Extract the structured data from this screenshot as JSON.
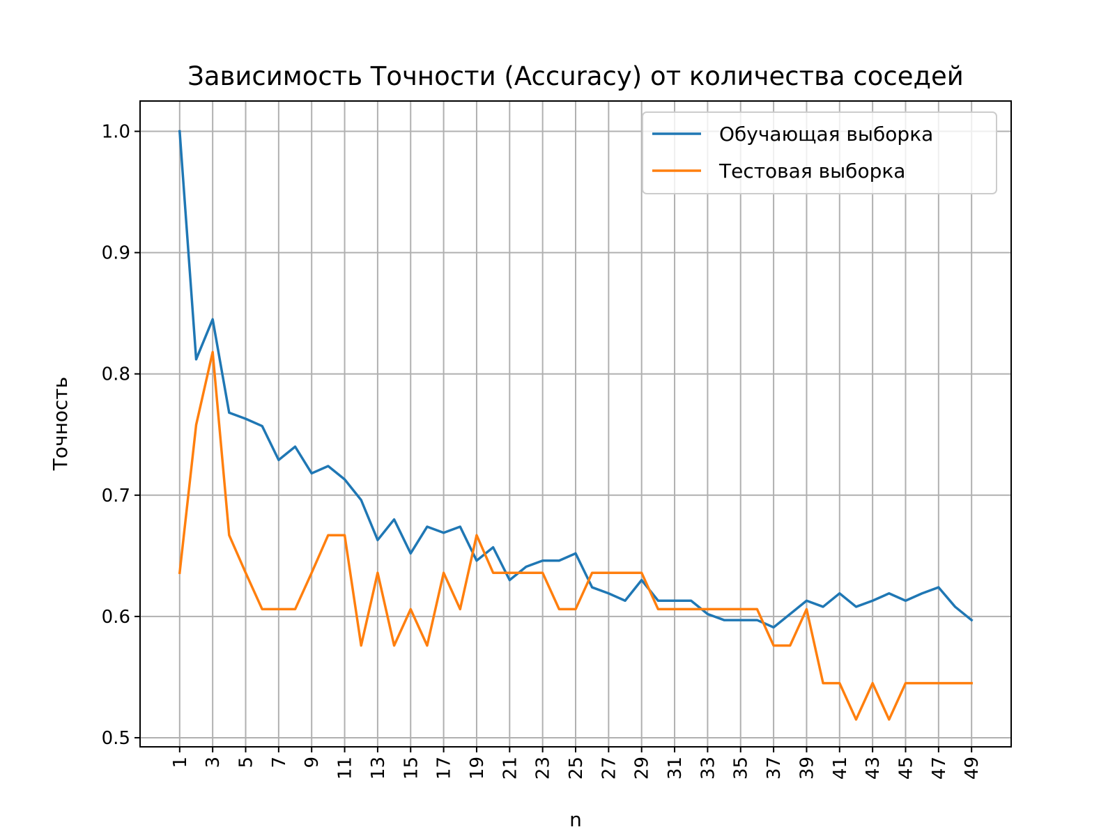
{
  "chart_data": {
    "type": "line",
    "title": "Зависимость Точности (Accuracy) от количества соседей",
    "xlabel": "n",
    "ylabel": "Точность",
    "x": [
      1,
      2,
      3,
      4,
      5,
      6,
      7,
      8,
      9,
      10,
      11,
      12,
      13,
      14,
      15,
      16,
      17,
      18,
      19,
      20,
      21,
      22,
      23,
      24,
      25,
      26,
      27,
      28,
      29,
      30,
      31,
      32,
      33,
      34,
      35,
      36,
      37,
      38,
      39,
      40,
      41,
      42,
      43,
      44,
      45,
      46,
      47,
      48,
      49
    ],
    "xticks": [
      1,
      3,
      5,
      7,
      9,
      11,
      13,
      15,
      17,
      19,
      21,
      23,
      25,
      27,
      29,
      31,
      33,
      35,
      37,
      39,
      41,
      43,
      45,
      47,
      49
    ],
    "xlim": [
      -1.4,
      51.4
    ],
    "ylim": [
      0.4925,
      1.025
    ],
    "yticks": [
      0.5,
      0.6,
      0.7,
      0.8,
      0.9,
      1.0
    ],
    "ytick_labels": [
      "0.5",
      "0.6",
      "0.7",
      "0.8",
      "0.9",
      "1.0"
    ],
    "grid": true,
    "legend_position": "top-right",
    "series": [
      {
        "name": "Обучающая выборка",
        "color": "#1f77b4",
        "values": [
          1.0,
          0.812,
          0.845,
          0.768,
          0.763,
          0.757,
          0.729,
          0.74,
          0.718,
          0.724,
          0.713,
          0.696,
          0.663,
          0.68,
          0.652,
          0.674,
          0.669,
          0.674,
          0.646,
          0.657,
          0.63,
          0.641,
          0.646,
          0.646,
          0.652,
          0.624,
          0.619,
          0.613,
          0.63,
          0.613,
          0.613,
          0.613,
          0.602,
          0.597,
          0.597,
          0.597,
          0.591,
          0.602,
          0.613,
          0.608,
          0.619,
          0.608,
          0.613,
          0.619,
          0.613,
          0.619,
          0.624,
          0.608,
          0.597
        ]
      },
      {
        "name": "Тестовая выборка",
        "color": "#ff7f0e",
        "values": [
          0.636,
          0.758,
          0.818,
          0.667,
          0.636,
          0.606,
          0.606,
          0.606,
          0.636,
          0.667,
          0.667,
          0.576,
          0.636,
          0.576,
          0.606,
          0.576,
          0.636,
          0.606,
          0.667,
          0.636,
          0.636,
          0.636,
          0.636,
          0.606,
          0.606,
          0.636,
          0.636,
          0.636,
          0.636,
          0.606,
          0.606,
          0.606,
          0.606,
          0.606,
          0.606,
          0.606,
          0.576,
          0.576,
          0.606,
          0.545,
          0.545,
          0.515,
          0.545,
          0.515,
          0.545,
          0.545,
          0.545,
          0.545,
          0.545
        ]
      }
    ]
  }
}
